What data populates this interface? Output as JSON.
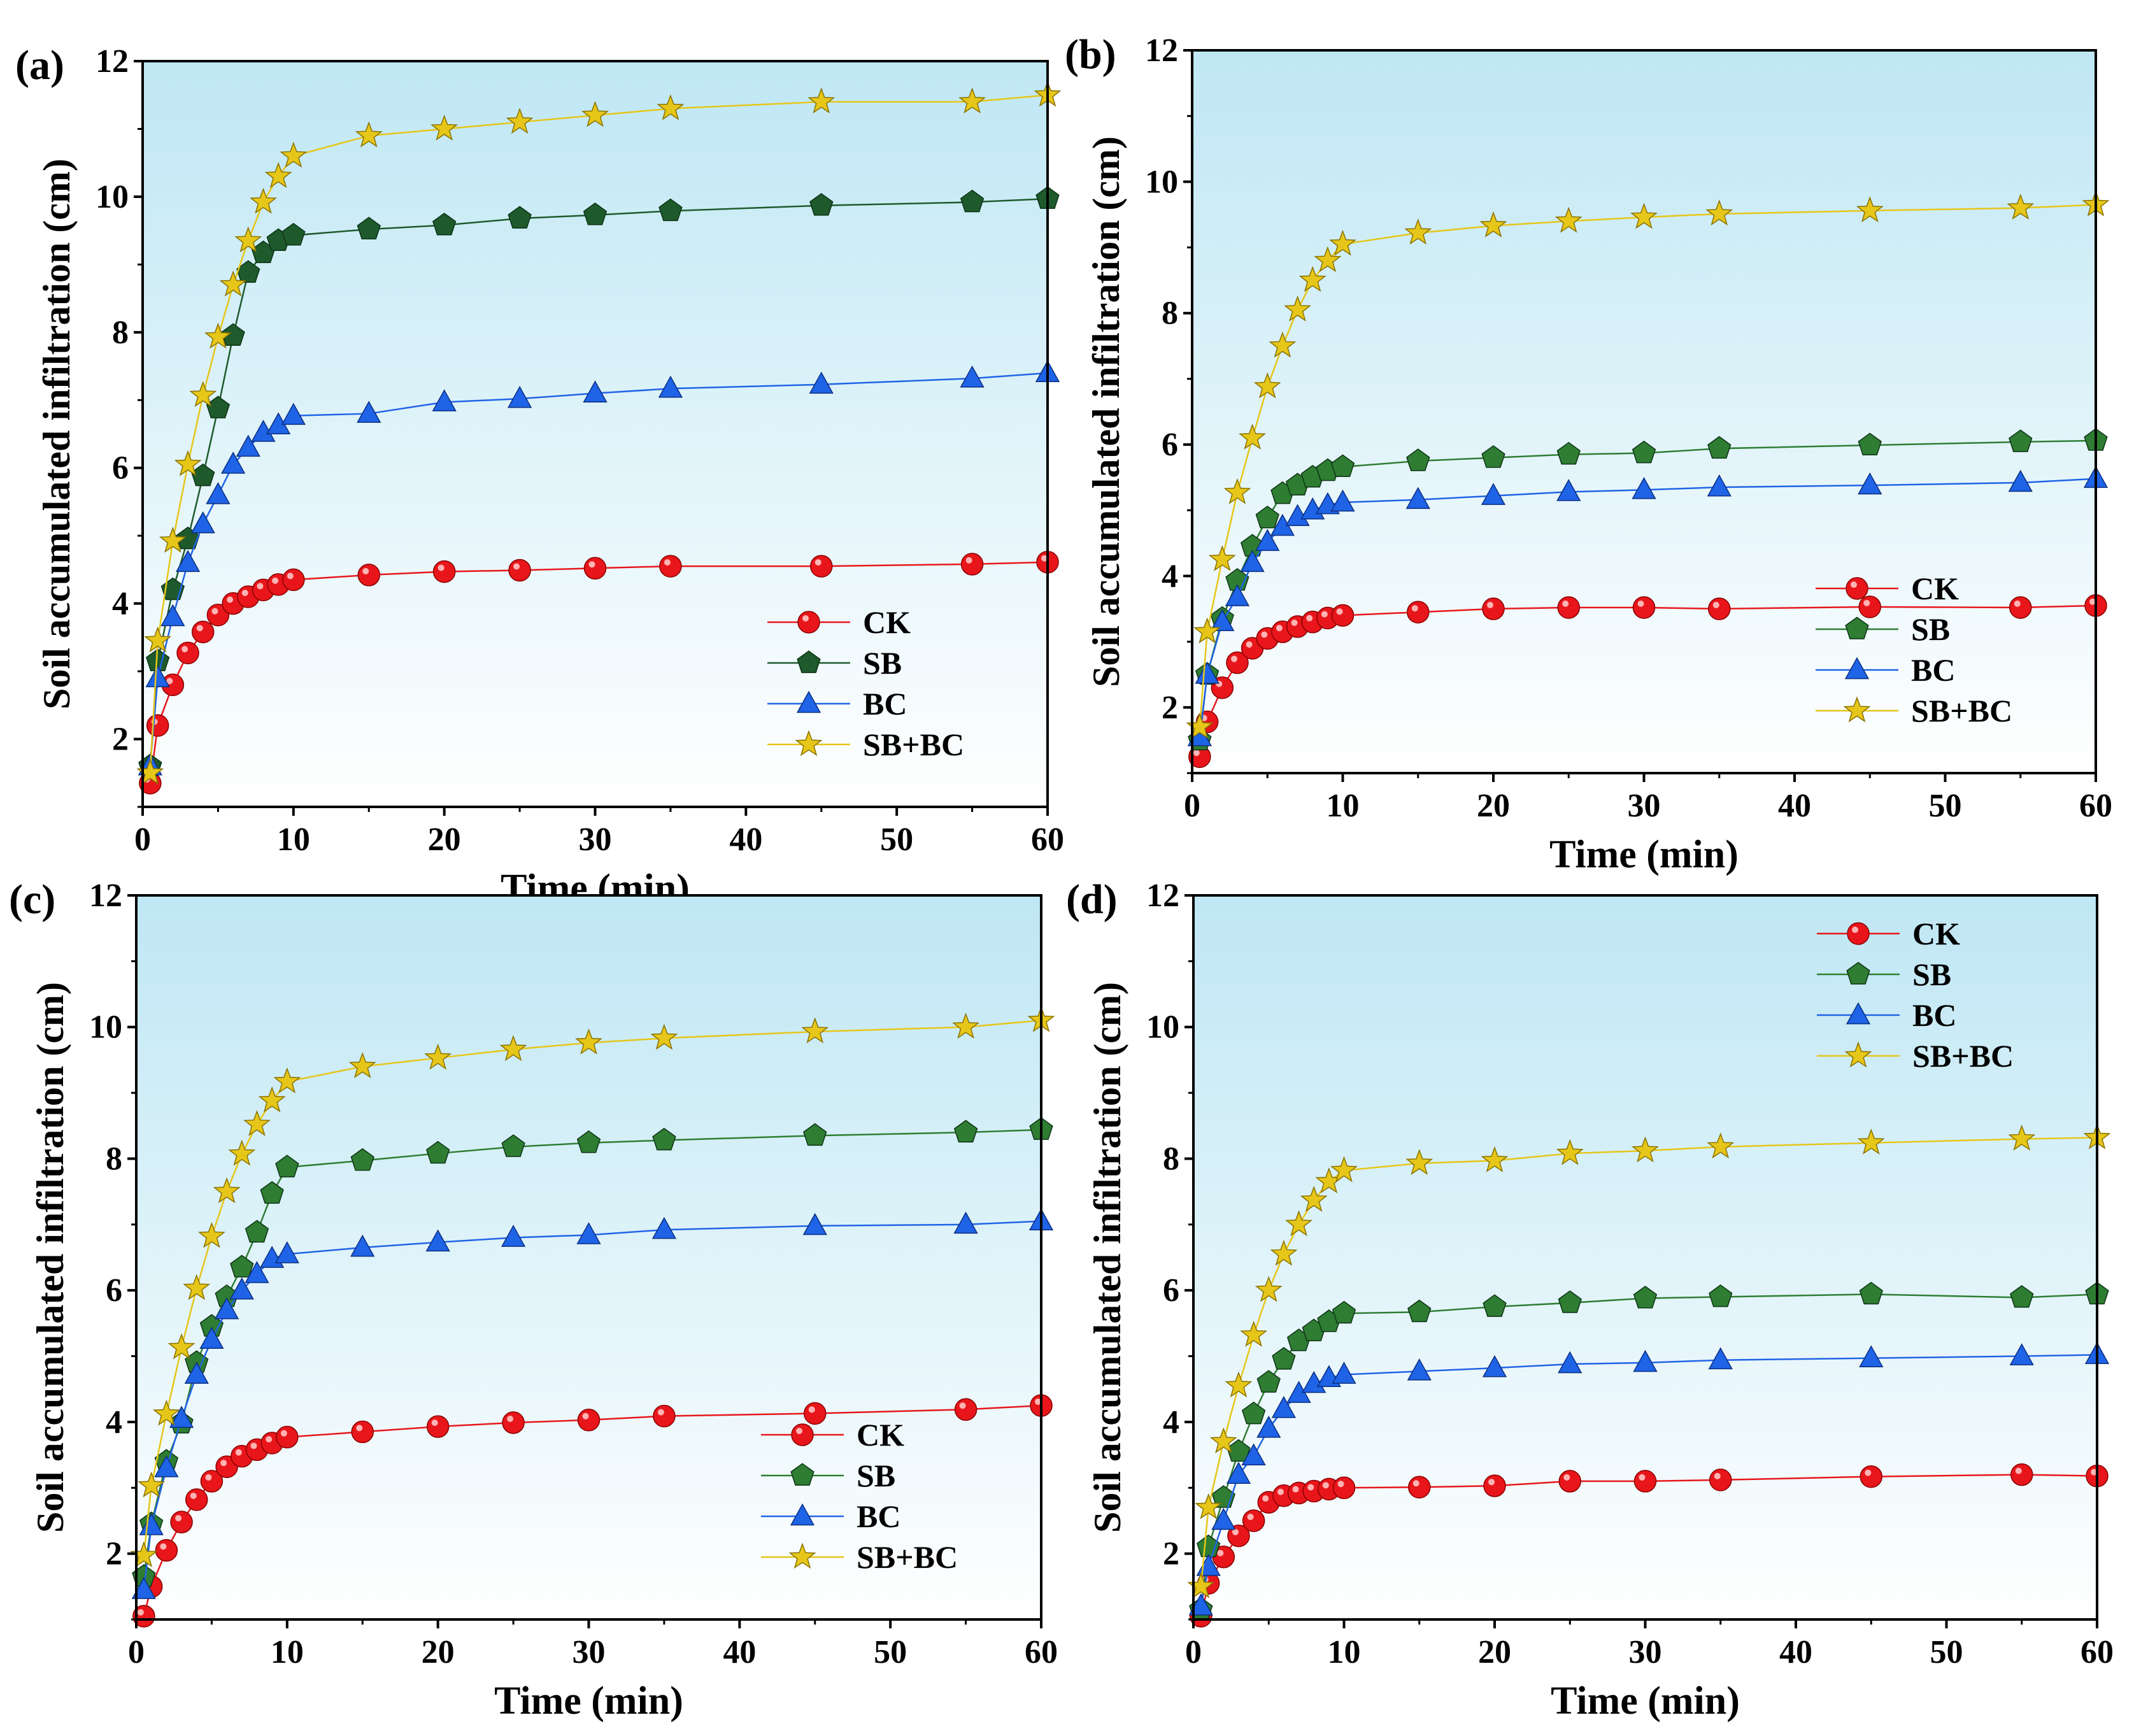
{
  "chart_data": [
    {
      "type": "line",
      "panel_label": "(a)",
      "xlabel": "Time (min)",
      "ylabel": "Soil accumulated infiltration (cm)",
      "xlim": [
        0,
        60
      ],
      "ylim": [
        1,
        12
      ],
      "xticks": [
        0,
        10,
        20,
        30,
        40,
        50,
        60
      ],
      "yticks": [
        2,
        4,
        6,
        8,
        10,
        12
      ],
      "legend_position": "bottom-right",
      "x": [
        0.5,
        1,
        2,
        3,
        4,
        5,
        6,
        7,
        8,
        9,
        10,
        15,
        20,
        25,
        30,
        35,
        45,
        55,
        60
      ],
      "series": [
        {
          "name": "CK",
          "marker": "circle",
          "color": "#e8161b",
          "values": [
            1.35,
            2.2,
            2.8,
            3.27,
            3.58,
            3.83,
            4.0,
            4.1,
            4.2,
            4.28,
            4.35,
            4.42,
            4.47,
            4.49,
            4.52,
            4.55,
            4.55,
            4.58,
            4.61
          ]
        },
        {
          "name": "SB",
          "marker": "pentagon",
          "color": "#1e5a2c",
          "values": [
            1.6,
            3.15,
            4.2,
            4.95,
            5.88,
            6.88,
            7.95,
            8.88,
            9.17,
            9.35,
            9.43,
            9.52,
            9.58,
            9.68,
            9.73,
            9.79,
            9.87,
            9.92,
            9.97
          ]
        },
        {
          "name": "BC",
          "marker": "triangle",
          "color": "#1f63e6",
          "values": [
            1.6,
            2.9,
            3.8,
            4.6,
            5.17,
            5.6,
            6.05,
            6.3,
            6.52,
            6.63,
            6.77,
            6.8,
            6.97,
            7.02,
            7.1,
            7.17,
            7.23,
            7.32,
            7.4
          ]
        },
        {
          "name": "SB+BC",
          "marker": "star",
          "color": "#e6c619",
          "values": [
            1.5,
            3.45,
            4.92,
            6.05,
            7.07,
            7.93,
            8.7,
            9.35,
            9.92,
            10.3,
            10.6,
            10.9,
            11.0,
            11.1,
            11.2,
            11.3,
            11.4,
            11.4,
            11.5
          ]
        }
      ]
    },
    {
      "type": "line",
      "panel_label": "(b)",
      "xlabel": "Time (min)",
      "ylabel": "Soil accumulated infiltration (cm)",
      "xlim": [
        0,
        60
      ],
      "ylim": [
        1,
        12
      ],
      "xticks": [
        0,
        10,
        20,
        30,
        40,
        50,
        60
      ],
      "yticks": [
        2,
        4,
        6,
        8,
        10,
        12
      ],
      "legend_position": "bottom-right",
      "x": [
        0.5,
        1,
        2,
        3,
        4,
        5,
        6,
        7,
        8,
        9,
        10,
        15,
        20,
        25,
        30,
        35,
        45,
        55,
        60
      ],
      "series": [
        {
          "name": "CK",
          "marker": "circle",
          "color": "#e8161b",
          "values": [
            1.25,
            1.78,
            2.3,
            2.68,
            2.9,
            3.05,
            3.15,
            3.23,
            3.3,
            3.36,
            3.4,
            3.45,
            3.5,
            3.52,
            3.52,
            3.5,
            3.53,
            3.52,
            3.55
          ]
        },
        {
          "name": "SB",
          "marker": "pentagon",
          "color": "#2e7d32",
          "values": [
            1.5,
            2.5,
            3.35,
            3.93,
            4.45,
            4.88,
            5.25,
            5.38,
            5.5,
            5.6,
            5.66,
            5.75,
            5.8,
            5.85,
            5.87,
            5.94,
            5.99,
            6.04,
            6.06
          ]
        },
        {
          "name": "BC",
          "marker": "triangle",
          "color": "#1f63e6",
          "values": [
            1.55,
            2.5,
            3.3,
            3.68,
            4.2,
            4.52,
            4.75,
            4.9,
            5.0,
            5.08,
            5.12,
            5.16,
            5.22,
            5.28,
            5.31,
            5.35,
            5.38,
            5.42,
            5.48
          ]
        },
        {
          "name": "SB+BC",
          "marker": "star",
          "color": "#e6c619",
          "values": [
            1.7,
            3.15,
            4.25,
            5.27,
            6.1,
            6.88,
            7.5,
            8.05,
            8.5,
            8.8,
            9.05,
            9.22,
            9.33,
            9.4,
            9.46,
            9.51,
            9.56,
            9.6,
            9.65
          ]
        }
      ]
    },
    {
      "type": "line",
      "panel_label": "(c)",
      "xlabel": "Time (min)",
      "ylabel": "Soil accumulated infiltration (cm)",
      "xlim": [
        0,
        60
      ],
      "ylim": [
        1,
        12
      ],
      "xticks": [
        0,
        10,
        20,
        30,
        40,
        50,
        60
      ],
      "yticks": [
        2,
        4,
        6,
        8,
        10,
        12
      ],
      "legend_position": "bottom-right",
      "x": [
        0.5,
        1,
        2,
        3,
        4,
        5,
        6,
        7,
        8,
        9,
        10,
        15,
        20,
        25,
        30,
        35,
        45,
        55,
        60
      ],
      "series": [
        {
          "name": "CK",
          "marker": "circle",
          "color": "#e8161b",
          "values": [
            1.05,
            1.5,
            2.05,
            2.48,
            2.82,
            3.1,
            3.32,
            3.48,
            3.58,
            3.68,
            3.77,
            3.85,
            3.93,
            3.99,
            4.03,
            4.09,
            4.13,
            4.19,
            4.25
          ]
        },
        {
          "name": "SB",
          "marker": "pentagon",
          "color": "#2e7d32",
          "values": [
            1.65,
            2.45,
            3.4,
            3.98,
            4.9,
            5.45,
            5.9,
            6.35,
            6.88,
            7.47,
            7.87,
            7.97,
            8.08,
            8.18,
            8.24,
            8.28,
            8.35,
            8.4,
            8.44
          ]
        },
        {
          "name": "BC",
          "marker": "triangle",
          "color": "#1f63e6",
          "values": [
            1.45,
            2.42,
            3.3,
            4.05,
            4.72,
            5.25,
            5.7,
            6.0,
            6.25,
            6.48,
            6.55,
            6.65,
            6.73,
            6.8,
            6.84,
            6.92,
            6.98,
            7.0,
            7.05
          ]
        },
        {
          "name": "SB+BC",
          "marker": "star",
          "color": "#e6c619",
          "values": [
            1.97,
            3.03,
            4.12,
            5.13,
            6.03,
            6.82,
            7.5,
            8.07,
            8.52,
            8.88,
            9.17,
            9.4,
            9.53,
            9.66,
            9.76,
            9.83,
            9.93,
            10.0,
            10.1
          ]
        }
      ]
    },
    {
      "type": "line",
      "panel_label": "(d)",
      "xlabel": "Time (min)",
      "ylabel": "Soil accumulated infiltration (cm)",
      "xlim": [
        0,
        60
      ],
      "ylim": [
        1,
        12
      ],
      "xticks": [
        0,
        10,
        20,
        30,
        40,
        50,
        60
      ],
      "yticks": [
        2,
        4,
        6,
        8,
        10,
        12
      ],
      "legend_position": "top-right",
      "x": [
        0.5,
        1,
        2,
        3,
        4,
        5,
        6,
        7,
        8,
        9,
        10,
        15,
        20,
        25,
        30,
        35,
        45,
        55,
        60
      ],
      "series": [
        {
          "name": "CK",
          "marker": "circle",
          "color": "#e8161b",
          "values": [
            1.05,
            1.55,
            1.95,
            2.27,
            2.5,
            2.78,
            2.88,
            2.92,
            2.95,
            2.98,
            3.0,
            3.01,
            3.03,
            3.1,
            3.1,
            3.12,
            3.17,
            3.2,
            3.18
          ]
        },
        {
          "name": "SB",
          "marker": "pentagon",
          "color": "#2e7d32",
          "values": [
            1.15,
            2.1,
            2.85,
            3.55,
            4.12,
            4.6,
            4.95,
            5.23,
            5.38,
            5.52,
            5.65,
            5.67,
            5.75,
            5.81,
            5.88,
            5.9,
            5.94,
            5.89,
            5.94
          ]
        },
        {
          "name": "BC",
          "marker": "triangle",
          "color": "#1f63e6",
          "values": [
            1.2,
            1.8,
            2.5,
            3.2,
            3.48,
            3.9,
            4.2,
            4.43,
            4.58,
            4.67,
            4.72,
            4.77,
            4.82,
            4.88,
            4.9,
            4.94,
            4.97,
            5.0,
            5.02
          ]
        },
        {
          "name": "SB+BC",
          "marker": "star",
          "color": "#e6c619",
          "values": [
            1.5,
            2.7,
            3.7,
            4.55,
            5.32,
            6.0,
            6.55,
            7.0,
            7.37,
            7.65,
            7.82,
            7.93,
            7.97,
            8.08,
            8.12,
            8.18,
            8.24,
            8.3,
            8.32
          ]
        }
      ]
    }
  ]
}
